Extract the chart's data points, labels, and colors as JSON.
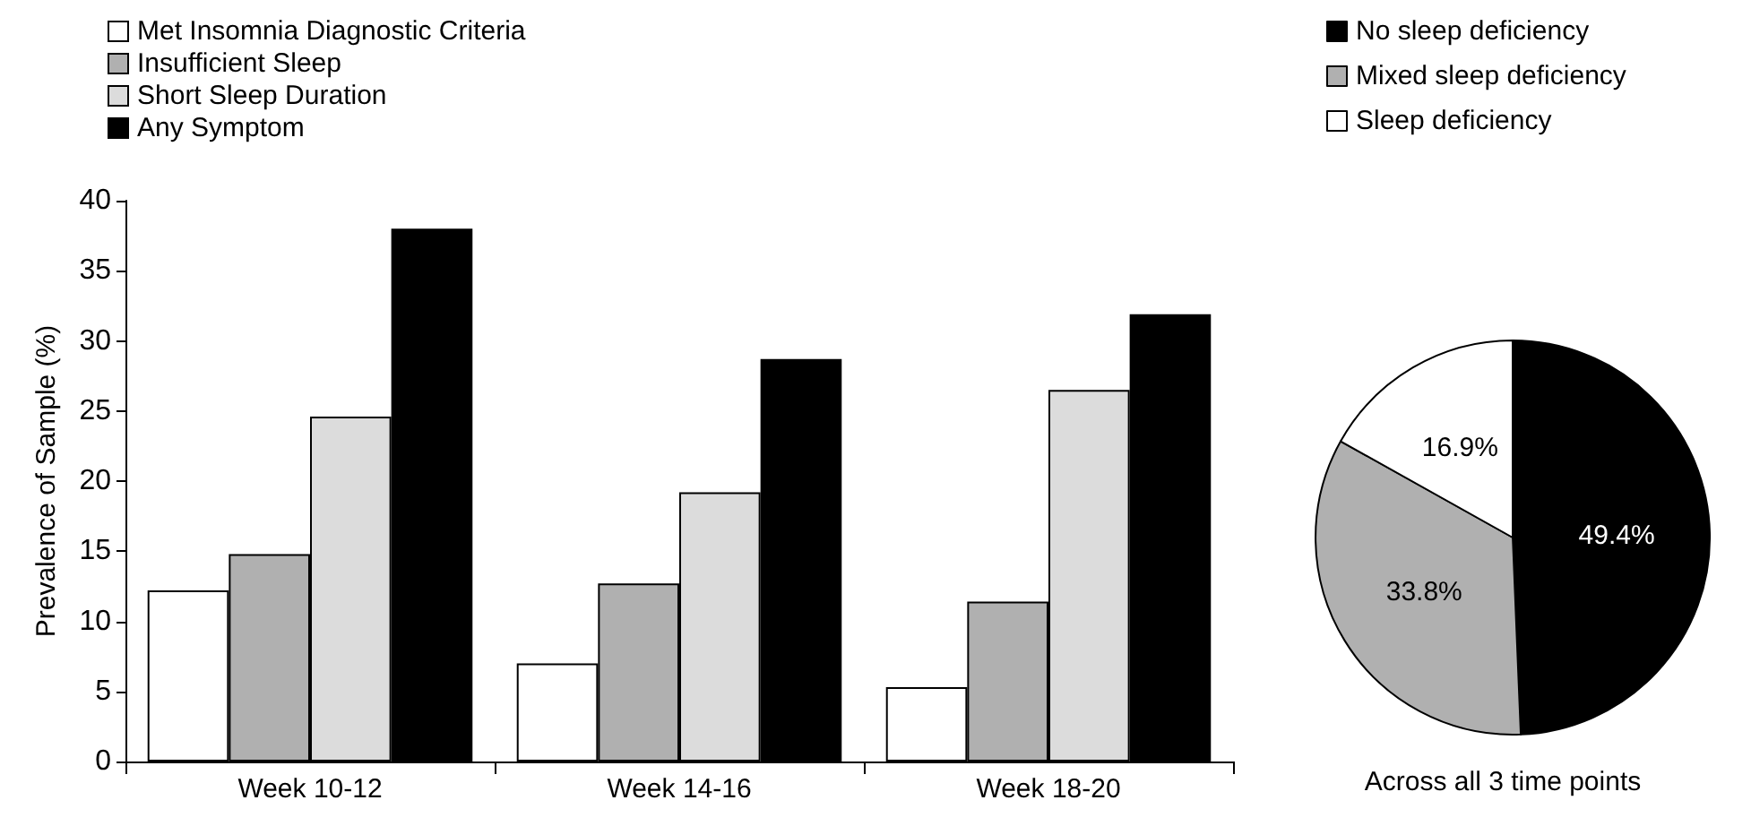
{
  "chart_data": [
    {
      "type": "bar",
      "ylabel": "Prevalence of Sample (%)",
      "categories": [
        "Week 10-12",
        "Week 14-16",
        "Week 18-20"
      ],
      "series": [
        {
          "name": "Met Insomnia Diagnostic Criteria",
          "color": "#ffffff",
          "values": [
            12.2,
            7.0,
            5.3
          ]
        },
        {
          "name": "Insufficient Sleep",
          "color": "#b0b0b0",
          "values": [
            14.8,
            12.7,
            11.4
          ]
        },
        {
          "name": "Short Sleep Duration",
          "color": "#dcdcdc",
          "values": [
            24.6,
            19.2,
            26.5
          ]
        },
        {
          "name": "Any Symptom",
          "color": "#000000",
          "values": [
            38.0,
            28.7,
            31.9
          ]
        }
      ],
      "ylim": [
        0,
        40
      ],
      "yticks": [
        0,
        5,
        10,
        15,
        20,
        25,
        30,
        35,
        40
      ],
      "grid": false,
      "legend": "top left"
    },
    {
      "type": "pie",
      "title": "Across all 3 time points",
      "categories": [
        "No sleep deficiency",
        "Mixed sleep deficiency",
        "Sleep deficiency"
      ],
      "values": [
        49.4,
        33.8,
        16.9
      ],
      "colors": [
        "#000000",
        "#b0b0b0",
        "#ffffff"
      ],
      "value_labels": [
        "49.4%",
        "33.8%",
        "16.9%"
      ],
      "legend": "top"
    }
  ]
}
